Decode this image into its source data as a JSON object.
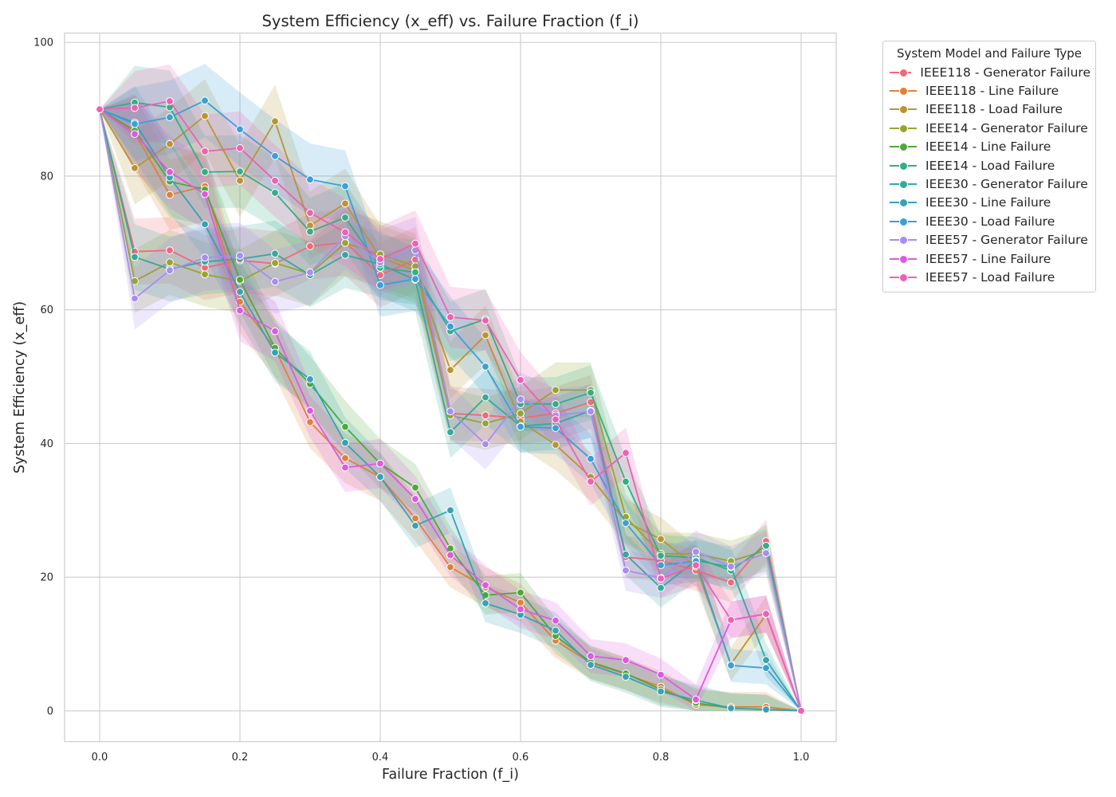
{
  "chart_data": {
    "type": "line",
    "title": "System Efficiency (x_eff) vs. Failure Fraction (f_i)",
    "xlabel": "Failure Fraction (f_i)",
    "ylabel": "System Efficiency (x_eff)",
    "xlim": [
      -0.05,
      1.05
    ],
    "ylim": [
      -4.6,
      101.4
    ],
    "xticks": [
      "0.0",
      "0.2",
      "0.4",
      "0.6",
      "0.8",
      "1.0"
    ],
    "yticks": [
      "0",
      "20",
      "40",
      "60",
      "80",
      "100"
    ],
    "grid": true,
    "legend_title": "System Model and Failure Type",
    "legend_position": "outside-top-right",
    "x": [
      0.0,
      0.05,
      0.1,
      0.15,
      0.2,
      0.25,
      0.3,
      0.35,
      0.4,
      0.45,
      0.5,
      0.55,
      0.6,
      0.65,
      0.7,
      0.75,
      0.8,
      0.85,
      0.9,
      0.95,
      1.0
    ],
    "series": [
      {
        "name": "IEEE118 - Generator Failure",
        "color": "#f0697a",
        "values": [
          90,
          68.7,
          68.9,
          66.3,
          67.4,
          66.9,
          69.5,
          70.1,
          65.2,
          67.5,
          44.5,
          44.2,
          43.8,
          44.5,
          46.2,
          23.0,
          22.5,
          21.0,
          19.2,
          25.4,
          0
        ]
      },
      {
        "name": "IEEE118 - Line Failure",
        "color": "#e08039",
        "values": [
          90,
          86.5,
          77.2,
          78.5,
          61.2,
          54.2,
          43.2,
          37.8,
          35.0,
          28.8,
          21.5,
          18.5,
          16.2,
          10.5,
          7.2,
          5.5,
          3.6,
          0.9,
          0.6,
          0.6,
          0
        ]
      },
      {
        "name": "IEEE118 - Load Failure",
        "color": "#bb9432",
        "values": [
          90,
          81.2,
          84.8,
          89.0,
          79.3,
          88.2,
          72.6,
          75.9,
          67.8,
          65.9,
          51.0,
          56.2,
          43.3,
          39.8,
          35.0,
          28.3,
          25.7,
          21.6,
          7.0,
          14.4,
          0
        ]
      },
      {
        "name": "IEEE14 - Generator Failure",
        "color": "#97a432",
        "values": [
          90,
          64.3,
          67.1,
          65.3,
          64.3,
          67.0,
          65.4,
          70.0,
          68.3,
          66.5,
          44.2,
          43.0,
          44.5,
          48.0,
          48.0,
          29.0,
          23.5,
          23.5,
          22.4,
          24.0,
          0
        ]
      },
      {
        "name": "IEEE14 - Line Failure",
        "color": "#4ea938",
        "values": [
          90,
          86.8,
          79.2,
          78.0,
          64.5,
          54.3,
          48.9,
          42.5,
          37.0,
          33.4,
          24.3,
          17.3,
          17.7,
          11.2,
          7.3,
          5.6,
          3.2,
          1.2,
          0.4,
          0.2,
          0
        ]
      },
      {
        "name": "IEEE14 - Load Failure",
        "color": "#34ae86",
        "values": [
          90,
          91.0,
          90.3,
          80.6,
          80.7,
          77.5,
          71.7,
          73.8,
          66.3,
          65.6,
          56.8,
          58.6,
          45.9,
          45.9,
          47.6,
          34.3,
          23.2,
          22.9,
          21.0,
          24.7,
          0
        ]
      },
      {
        "name": "IEEE30 - Generator Failure",
        "color": "#35a99d",
        "values": [
          90,
          67.9,
          66.1,
          67.2,
          67.6,
          68.4,
          65.2,
          68.2,
          66.8,
          64.5,
          41.7,
          46.9,
          42.6,
          43.0,
          44.9,
          23.4,
          18.4,
          22.5,
          21.5,
          7.6,
          0
        ]
      },
      {
        "name": "IEEE30 - Line Failure",
        "color": "#36a3b4",
        "values": [
          90,
          88.0,
          79.8,
          72.8,
          62.7,
          53.6,
          49.6,
          40.1,
          35.0,
          27.7,
          30.0,
          16.1,
          14.4,
          12.0,
          6.9,
          5.1,
          2.9,
          1.6,
          0.4,
          0.2,
          0
        ]
      },
      {
        "name": "IEEE30 - Load Failure",
        "color": "#3aa0d8",
        "values": [
          90,
          87.8,
          88.8,
          91.3,
          87.0,
          83.0,
          79.5,
          78.5,
          63.7,
          64.6,
          57.5,
          51.5,
          42.5,
          42.3,
          37.7,
          28.1,
          21.8,
          22.4,
          6.8,
          6.4,
          0
        ]
      },
      {
        "name": "IEEE57 - Generator Failure",
        "color": "#a98df0",
        "values": [
          90,
          61.7,
          65.9,
          67.8,
          68.1,
          64.2,
          65.6,
          71.0,
          67.1,
          68.9,
          44.8,
          39.9,
          46.6,
          44.2,
          44.8,
          21.0,
          19.9,
          23.8,
          21.6,
          23.6,
          0
        ]
      },
      {
        "name": "IEEE57 - Line Failure",
        "color": "#dd5ae2",
        "values": [
          90,
          86.3,
          80.6,
          77.3,
          59.9,
          56.8,
          44.9,
          36.4,
          37.0,
          31.7,
          23.3,
          18.8,
          15.2,
          13.5,
          8.2,
          7.6,
          5.4,
          1.7,
          13.6,
          14.5,
          0
        ]
      },
      {
        "name": "IEEE57 - Load Failure",
        "color": "#ef60b4",
        "values": [
          90,
          90.2,
          91.2,
          83.7,
          84.2,
          79.3,
          74.5,
          71.6,
          67.6,
          69.9,
          58.9,
          58.4,
          49.5,
          43.6,
          34.3,
          38.6,
          19.8,
          21.8,
          13.6,
          14.5,
          0
        ]
      }
    ]
  }
}
